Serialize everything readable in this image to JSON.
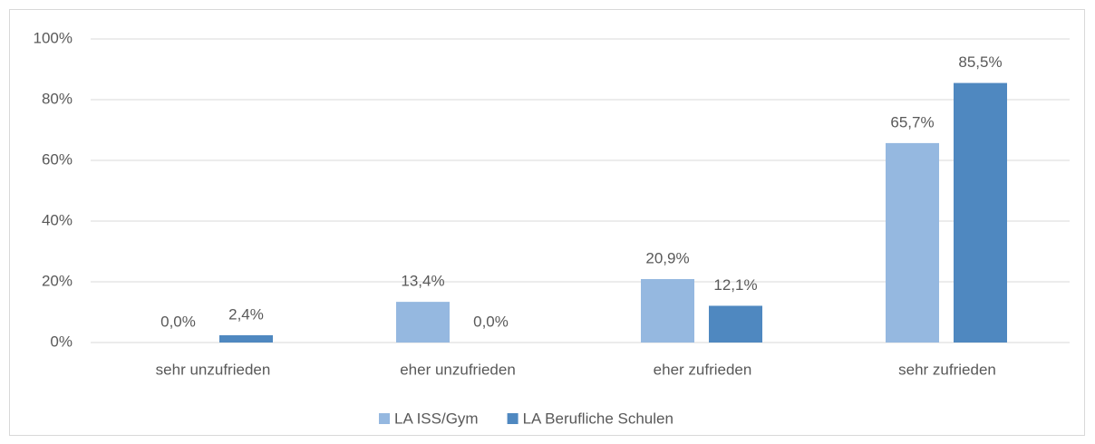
{
  "chart_data": {
    "type": "bar",
    "categories": [
      "sehr unzufrieden",
      "eher unzufrieden",
      "eher zufrieden",
      "sehr zufrieden"
    ],
    "series": [
      {
        "name": "LA ISS/Gym",
        "color": "#95b8e0",
        "values": [
          0.0,
          13.4,
          20.9,
          65.7
        ],
        "value_labels": [
          "0,0%",
          "13,4%",
          "20,9%",
          "65,7%"
        ]
      },
      {
        "name": "LA Berufliche Schulen",
        "color": "#4f88c0",
        "values": [
          2.4,
          0.0,
          12.1,
          85.5
        ],
        "value_labels": [
          "2,4%",
          "0,0%",
          "12,1%",
          "85,5%"
        ]
      }
    ],
    "ylim": [
      0,
      100
    ],
    "yticks": [
      {
        "value": 0,
        "label": "0%"
      },
      {
        "value": 20,
        "label": "20%"
      },
      {
        "value": 40,
        "label": "40%"
      },
      {
        "value": 60,
        "label": "60%"
      },
      {
        "value": 80,
        "label": "80%"
      },
      {
        "value": 100,
        "label": "100%"
      }
    ],
    "grid": true,
    "legend": "bottom"
  }
}
